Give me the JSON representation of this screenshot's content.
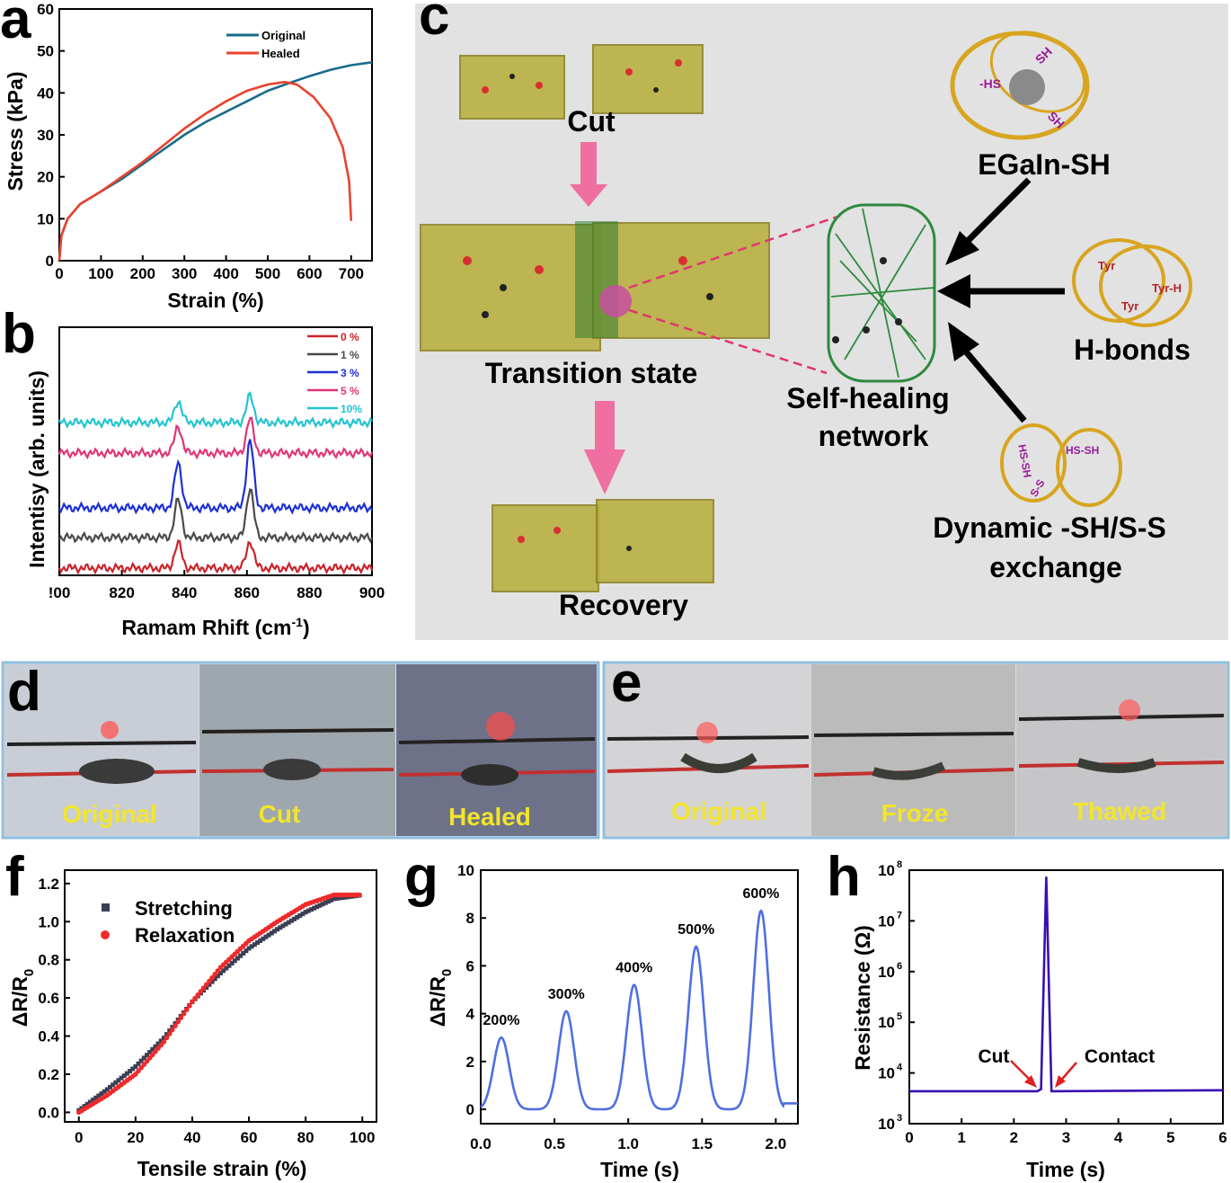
{
  "panels": {
    "a": {
      "letter": "a"
    },
    "b": {
      "letter": "b"
    },
    "c": {
      "letter": "c"
    },
    "d": {
      "letter": "d"
    },
    "e": {
      "letter": "e"
    },
    "f": {
      "letter": "f"
    },
    "g": {
      "letter": "g"
    },
    "h": {
      "letter": "h"
    }
  },
  "colors": {
    "original": "#1a6b8a",
    "healed": "#e8432e",
    "panel_c_bg": "#e2e2e2",
    "arrow_pink": "#ef6fa0",
    "photo_label": "#f2e52a",
    "g_line": "#4f6fe0",
    "h_line": "#3a0fb0"
  },
  "chart_data": [
    {
      "panel": "a",
      "type": "line",
      "xlabel": "Strain (%)",
      "ylabel": "Stress (kPa)",
      "xlim": [
        0,
        750
      ],
      "ylim": [
        0,
        60
      ],
      "xticks": [
        "0",
        "100",
        "200",
        "300",
        "400",
        "500",
        "600",
        "700"
      ],
      "yticks": [
        "0",
        "10",
        "20",
        "30",
        "40",
        "50",
        "60"
      ],
      "legend_position": "top-right",
      "series": [
        {
          "name": "Original",
          "color": "#1a6b8a",
          "points": [
            [
              0,
              0
            ],
            [
              5,
              6
            ],
            [
              20,
              10
            ],
            [
              50,
              13.5
            ],
            [
              100,
              16.5
            ],
            [
              150,
              19.5
            ],
            [
              200,
              23
            ],
            [
              250,
              26.5
            ],
            [
              300,
              30
            ],
            [
              350,
              33
            ],
            [
              400,
              35.5
            ],
            [
              450,
              38
            ],
            [
              500,
              40.5
            ],
            [
              550,
              42.3
            ],
            [
              600,
              44
            ],
            [
              650,
              45.5
            ],
            [
              700,
              46.6
            ],
            [
              750,
              47.3
            ]
          ]
        },
        {
          "name": "Healed",
          "color": "#e8432e",
          "points": [
            [
              0,
              0
            ],
            [
              5,
              6
            ],
            [
              20,
              10
            ],
            [
              50,
              13.5
            ],
            [
              100,
              16.5
            ],
            [
              150,
              20
            ],
            [
              200,
              23.5
            ],
            [
              250,
              27.5
            ],
            [
              300,
              31.5
            ],
            [
              350,
              35
            ],
            [
              400,
              38
            ],
            [
              450,
              40.5
            ],
            [
              500,
              42
            ],
            [
              540,
              42.6
            ],
            [
              570,
              42
            ],
            [
              610,
              39
            ],
            [
              650,
              34
            ],
            [
              680,
              27
            ],
            [
              695,
              19
            ],
            [
              700,
              9.5
            ]
          ]
        }
      ]
    },
    {
      "panel": "b",
      "type": "line",
      "xlabel_main": "Ramam Rhift (cm",
      "xlabel_sup": "-1",
      "xlabel_end": ")",
      "ylabel": "Intentisy (arb. units)",
      "xlim": [
        800,
        900
      ],
      "xticks": [
        "!00",
        "820",
        "840",
        "860",
        "880",
        "900"
      ],
      "legend_position": "top-right",
      "series": [
        {
          "name": "0 %",
          "color": "#c9242a",
          "offset": 0,
          "amp1": 28,
          "amp2": 30
        },
        {
          "name": "1 %",
          "color": "#4a4a4a",
          "offset": 1,
          "amp1": 42,
          "amp2": 55
        },
        {
          "name": "3 %",
          "color": "#1d2fd6",
          "offset": 2,
          "amp1": 50,
          "amp2": 75
        },
        {
          "name": "5 %",
          "color": "#e0357a",
          "offset": 3,
          "amp1": 30,
          "amp2": 38
        },
        {
          "name": "10%",
          "color": "#23c4d0",
          "offset": 4,
          "amp1": 24,
          "amp2": 30
        }
      ],
      "peaks": [
        838,
        861
      ]
    },
    {
      "panel": "f",
      "type": "scatter",
      "xlabel": "Tensile strain (%)",
      "ylabel_main": "ΔR/R",
      "ylabel_sub": "0",
      "xlim": [
        -5,
        105
      ],
      "ylim": [
        -0.05,
        1.27
      ],
      "xticks": [
        "0",
        "20",
        "40",
        "60",
        "80",
        "100"
      ],
      "yticks": [
        "0.0",
        "0.2",
        "0.4",
        "0.6",
        "0.8",
        "1.0",
        "1.2"
      ],
      "legend_position": "top-left",
      "series": [
        {
          "name": "Stretching",
          "color": "#3a3f55",
          "points": [
            [
              0,
              0.01
            ],
            [
              10,
              0.12
            ],
            [
              20,
              0.24
            ],
            [
              30,
              0.39
            ],
            [
              40,
              0.58
            ],
            [
              50,
              0.73
            ],
            [
              60,
              0.86
            ],
            [
              70,
              0.96
            ],
            [
              80,
              1.05
            ],
            [
              90,
              1.12
            ],
            [
              100,
              1.14
            ]
          ]
        },
        {
          "name": "Relaxation",
          "color": "#ee2a2a",
          "points": [
            [
              0,
              0
            ],
            [
              10,
              0.09
            ],
            [
              20,
              0.2
            ],
            [
              30,
              0.37
            ],
            [
              40,
              0.58
            ],
            [
              50,
              0.76
            ],
            [
              60,
              0.9
            ],
            [
              70,
              1.0
            ],
            [
              80,
              1.09
            ],
            [
              90,
              1.14
            ],
            [
              100,
              1.14
            ]
          ]
        }
      ]
    },
    {
      "panel": "g",
      "type": "line",
      "xlabel": "Time (s)",
      "ylabel_main": "ΔR/R",
      "ylabel_sub": "0",
      "xlim": [
        0,
        2.15
      ],
      "ylim": [
        -0.6,
        10
      ],
      "xticks": [
        "0.0",
        "0.5",
        "1.0",
        "1.5",
        "2.0"
      ],
      "yticks": [
        "0",
        "2",
        "4",
        "6",
        "8",
        "10"
      ],
      "series": [
        {
          "name": "",
          "color": "#4f6fe0",
          "peaks": [
            [
              0.14,
              3.0
            ],
            [
              0.58,
              4.1
            ],
            [
              1.04,
              5.2
            ],
            [
              1.46,
              6.8
            ],
            [
              1.9,
              8.3
            ]
          ]
        }
      ],
      "annotations": [
        "200%",
        "300%",
        "400%",
        "500%",
        "600%"
      ]
    },
    {
      "panel": "h",
      "type": "line",
      "xlabel": "Time (s)",
      "ylabel": "Resistance (Ω)",
      "xlim": [
        0,
        6
      ],
      "ylim_log10": [
        3,
        8
      ],
      "log_y": true,
      "xticks": [
        "0",
        "1",
        "2",
        "3",
        "4",
        "5",
        "6"
      ],
      "yticks_exp": [
        "3",
        "4",
        "5",
        "6",
        "7",
        "8"
      ],
      "series": [
        {
          "name": "",
          "color": "#3a0fb0",
          "points": [
            [
              0,
              3.64
            ],
            [
              2.45,
              3.64
            ],
            [
              2.52,
              3.68
            ],
            [
              2.62,
              7.87
            ],
            [
              2.72,
              3.64
            ],
            [
              6,
              3.66
            ]
          ]
        }
      ],
      "annotations": [
        "Cut",
        "Contact"
      ]
    }
  ],
  "panel_c": {
    "cut": "Cut",
    "transition": "Transition state",
    "recovery": "Recovery",
    "network": "Self-healing\nnetwork",
    "network_line1": "Self-healing",
    "network_line2": "network",
    "egain": "EGaIn-SH",
    "hbonds": "H-bonds",
    "dynamic1": "Dynamic -SH/S-S",
    "dynamic2": "exchange",
    "mol_labels": [
      "-HS",
      "SH",
      "SH",
      "Tyr",
      "Tyr",
      "Tyr-H",
      "HS-SH",
      "S-S",
      "HS-SH"
    ]
  },
  "panel_d": {
    "labels": [
      "Original",
      "Cut",
      "Healed"
    ]
  },
  "panel_e": {
    "labels": [
      "Original",
      "Froze",
      "Thawed"
    ]
  }
}
